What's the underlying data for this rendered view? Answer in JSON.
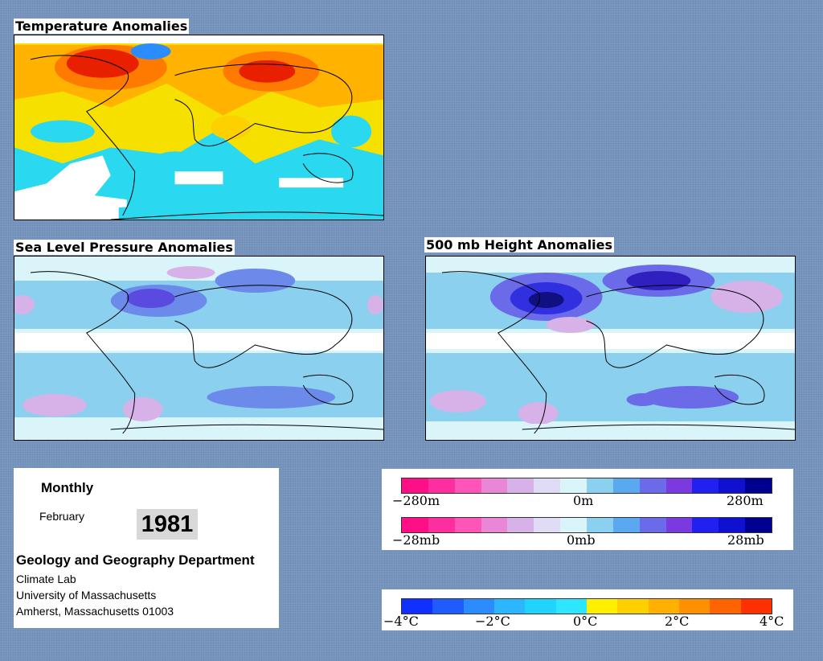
{
  "panels": {
    "temperature": {
      "title": "Temperature Anomalies"
    },
    "slp": {
      "title": "Sea Level Pressure Anomalies"
    },
    "height": {
      "title": "500 mb Height Anomalies"
    }
  },
  "info": {
    "period": "Monthly",
    "month": "February",
    "year": "1981",
    "department": "Geology and Geography Department",
    "lines": [
      "Climate Lab",
      "University of Massachusetts",
      "Amherst, Massachusetts 01003"
    ]
  },
  "legend_height": {
    "labels": [
      "−280m",
      "0m",
      "280m"
    ],
    "colors": [
      "#ff0f85",
      "#ff2ea0",
      "#ff55b8",
      "#ea86d6",
      "#d7b2e8",
      "#e1dcf5",
      "#d9f5f9",
      "#8cd0ef",
      "#5aa8ef",
      "#6b6be9",
      "#7a3ae0",
      "#2020f0",
      "#1010d0",
      "#000090"
    ]
  },
  "legend_pressure": {
    "labels": [
      "−28mb",
      "0mb",
      "28mb"
    ],
    "colors": [
      "#ff0f85",
      "#ff2ea0",
      "#ff55b8",
      "#ea86d6",
      "#d7b2e8",
      "#e1dcf5",
      "#d9f5f9",
      "#8cd0ef",
      "#5aa8ef",
      "#6b6be9",
      "#7a3ae0",
      "#2020f0",
      "#1010d0",
      "#000090"
    ]
  },
  "legend_temperature": {
    "labels": [
      "−4°C",
      "−2°C",
      "0°C",
      "2°C",
      "4°C"
    ],
    "colors": [
      "#1030ff",
      "#1e5cff",
      "#2a8cff",
      "#2cb6ff",
      "#22d2ff",
      "#2ee6ff",
      "#fff000",
      "#ffd000",
      "#ffb000",
      "#ff9000",
      "#ff6400",
      "#ff3000"
    ]
  }
}
